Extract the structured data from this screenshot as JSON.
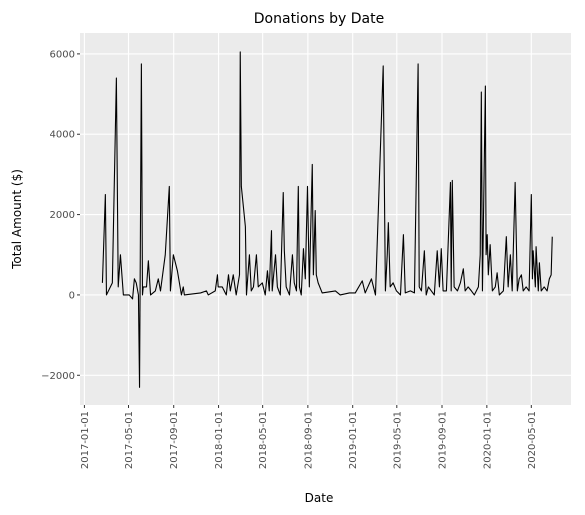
{
  "chart_data": {
    "type": "line",
    "title": "Donations by Date",
    "xlabel": "Date",
    "ylabel": "Total Amount ($)",
    "x": [
      "2017-02-19",
      "2017-02-27",
      "2017-03-02",
      "2017-03-18",
      "2017-03-29",
      "2017-04-03",
      "2017-04-09",
      "2017-04-17",
      "2017-05-03",
      "2017-05-12",
      "2017-05-17",
      "2017-05-22",
      "2017-05-28",
      "2017-05-31",
      "2017-06-05",
      "2017-06-08",
      "2017-06-10",
      "2017-06-19",
      "2017-06-24",
      "2017-06-30",
      "2017-07-13",
      "2017-07-21",
      "2017-07-27",
      "2017-08-09",
      "2017-08-20",
      "2017-08-23",
      "2017-08-31",
      "2017-09-11",
      "2017-09-22",
      "2017-09-27",
      "2017-09-30",
      "2017-11-13",
      "2017-11-29",
      "2017-12-04",
      "2017-12-23",
      "2017-12-29",
      "2017-12-31",
      "2018-01-11",
      "2018-01-22",
      "2018-01-28",
      "2018-02-02",
      "2018-02-10",
      "2018-02-18",
      "2018-02-27",
      "2018-03-01",
      "2018-03-04",
      "2018-03-15",
      "2018-03-18",
      "2018-03-26",
      "2018-03-31",
      "2018-04-06",
      "2018-04-14",
      "2018-04-19",
      "2018-04-30",
      "2018-05-08",
      "2018-05-14",
      "2018-05-19",
      "2018-05-25",
      "2018-05-27",
      "2018-06-05",
      "2018-06-10",
      "2018-06-18",
      "2018-06-26",
      "2018-06-29",
      "2018-07-04",
      "2018-07-13",
      "2018-07-21",
      "2018-07-26",
      "2018-08-01",
      "2018-08-06",
      "2018-08-09",
      "2018-08-14",
      "2018-08-20",
      "2018-08-25",
      "2018-08-31",
      "2018-09-05",
      "2018-09-13",
      "2018-09-16",
      "2018-09-21",
      "2018-09-24",
      "2018-09-29",
      "2018-10-10",
      "2018-11-15",
      "2018-11-28",
      "2018-12-23",
      "2019-01-08",
      "2019-01-27",
      "2019-02-04",
      "2019-02-21",
      "2019-03-04",
      "2019-03-25",
      "2019-03-31",
      "2019-04-05",
      "2019-04-08",
      "2019-04-13",
      "2019-04-21",
      "2019-04-30",
      "2019-05-11",
      "2019-05-19",
      "2019-05-24",
      "2019-06-07",
      "2019-06-18",
      "2019-06-28",
      "2019-07-01",
      "2019-07-07",
      "2019-07-15",
      "2019-07-20",
      "2019-07-26",
      "2019-08-03",
      "2019-08-11",
      "2019-08-19",
      "2019-08-25",
      "2019-08-30",
      "2019-09-04",
      "2019-09-13",
      "2019-09-24",
      "2019-09-26",
      "2019-09-29",
      "2019-10-04",
      "2019-10-13",
      "2019-10-21",
      "2019-10-29",
      "2019-11-03",
      "2019-11-11",
      "2019-11-20",
      "2019-11-28",
      "2019-12-09",
      "2019-12-14",
      "2019-12-17",
      "2019-12-20",
      "2019-12-28",
      "2019-12-30",
      "2020-01-02",
      "2020-01-05",
      "2020-01-10",
      "2020-01-16",
      "2020-01-24",
      "2020-01-29",
      "2020-02-04",
      "2020-02-15",
      "2020-02-23",
      "2020-02-28",
      "2020-03-05",
      "2020-03-10",
      "2020-03-18",
      "2020-03-24",
      "2020-03-29",
      "2020-04-04",
      "2020-04-09",
      "2020-04-17",
      "2020-04-25",
      "2020-05-01",
      "2020-05-04",
      "2020-05-06",
      "2020-05-12",
      "2020-05-14",
      "2020-05-20",
      "2020-05-23",
      "2020-05-28",
      "2020-06-05",
      "2020-06-13",
      "2020-06-19",
      "2020-06-24",
      "2020-06-27"
    ],
    "values": [
      300,
      2500,
      0,
      300,
      5400,
      200,
      1000,
      0,
      0,
      -100,
      400,
      300,
      0,
      -2300,
      5750,
      0,
      200,
      200,
      850,
      0,
      100,
      400,
      100,
      1000,
      2700,
      100,
      1000,
      600,
      0,
      200,
      0,
      50,
      100,
      0,
      100,
      500,
      200,
      200,
      0,
      500,
      100,
      500,
      0,
      500,
      6050,
      2700,
      1700,
      0,
      1000,
      100,
      200,
      1000,
      200,
      300,
      0,
      600,
      100,
      1600,
      100,
      1000,
      200,
      0,
      2550,
      1100,
      200,
      0,
      1000,
      300,
      100,
      2700,
      200,
      0,
      1150,
      400,
      2700,
      200,
      3250,
      500,
      2100,
      500,
      300,
      50,
      100,
      0,
      50,
      50,
      350,
      50,
      400,
      0,
      5700,
      100,
      1000,
      1800,
      200,
      300,
      100,
      0,
      1500,
      50,
      100,
      50,
      5750,
      200,
      100,
      1100,
      0,
      200,
      100,
      0,
      1100,
      200,
      1150,
      100,
      100,
      2800,
      100,
      2850,
      200,
      100,
      300,
      650,
      100,
      200,
      100,
      0,
      200,
      1000,
      5050,
      100,
      5200,
      1000,
      1500,
      500,
      1250,
      100,
      200,
      550,
      0,
      100,
      1450,
      200,
      1000,
      100,
      2800,
      100,
      400,
      500,
      100,
      200,
      100,
      2500,
      400,
      1100,
      200,
      1200,
      100,
      800,
      100,
      200,
      100,
      400,
      500,
      1450
    ],
    "color": "#000000",
    "xlim": [
      "2016-12-20",
      "2020-08-17"
    ],
    "xticks": [
      "2017-01-01",
      "2017-05-01",
      "2017-09-01",
      "2018-01-01",
      "2018-05-01",
      "2018-09-01",
      "2019-01-01",
      "2019-05-01",
      "2019-09-01",
      "2020-01-01",
      "2020-05-01"
    ],
    "ylim": [
      -2740,
      6520
    ],
    "yticks": [
      {
        "value": -2000,
        "label": "−2000"
      },
      0,
      2000,
      4000,
      6000
    ],
    "grid": true
  }
}
